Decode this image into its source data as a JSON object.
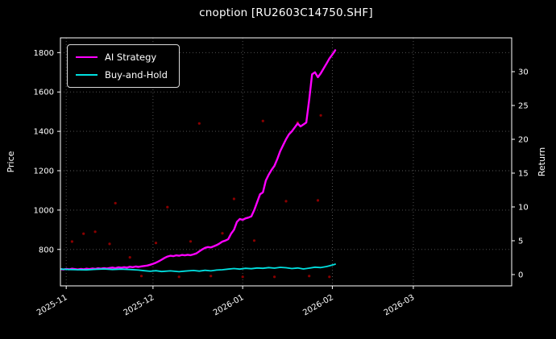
{
  "chart_data": {
    "type": "line",
    "title": "cnoption [RU2603C14750.SHF]",
    "ylabel_left": "Price",
    "ylabel_right": "Return",
    "x_unit": "days since 2025-10-28 (estimated from date ticks)",
    "x_range": [
      2,
      158
    ],
    "x_ticks": [
      {
        "x": 4,
        "label": "2025-11"
      },
      {
        "x": 34,
        "label": "2025-12"
      },
      {
        "x": 65,
        "label": "2026-01"
      },
      {
        "x": 96,
        "label": "2026-02"
      },
      {
        "x": 124,
        "label": "2026-03"
      }
    ],
    "y_left_range": [
      615,
      1875
    ],
    "y_left_ticks": [
      800,
      1000,
      1200,
      1400,
      1600,
      1800
    ],
    "y_right_range": [
      -1.67,
      35.0
    ],
    "y_right_ticks": [
      0,
      5,
      10,
      15,
      20,
      25,
      30
    ],
    "grid": true,
    "grid_style": "dotted",
    "legend_position": "upper-left",
    "background": "#000000",
    "text_color": "#ffffff",
    "grid_color": "#5a5a5a",
    "series": [
      {
        "name": "AI Strategy",
        "color": "#ff00ff",
        "line_width": 2.4,
        "axis": "left",
        "points": [
          [
            2,
            700
          ],
          [
            3,
            698
          ],
          [
            4,
            701
          ],
          [
            5,
            699
          ],
          [
            6,
            702
          ],
          [
            7,
            700
          ],
          [
            8,
            698
          ],
          [
            9,
            701
          ],
          [
            10,
            699
          ],
          [
            11,
            702
          ],
          [
            12,
            700
          ],
          [
            13,
            703
          ],
          [
            14,
            701
          ],
          [
            15,
            704
          ],
          [
            16,
            702
          ],
          [
            17,
            705
          ],
          [
            18,
            703
          ],
          [
            19,
            706
          ],
          [
            20,
            708
          ],
          [
            21,
            705
          ],
          [
            22,
            709
          ],
          [
            23,
            707
          ],
          [
            24,
            710
          ],
          [
            25,
            708
          ],
          [
            26,
            712
          ],
          [
            27,
            710
          ],
          [
            28,
            713
          ],
          [
            29,
            711
          ],
          [
            30,
            714
          ],
          [
            31,
            716
          ],
          [
            32,
            718
          ],
          [
            33,
            722
          ],
          [
            34,
            727
          ],
          [
            35,
            733
          ],
          [
            36,
            740
          ],
          [
            37,
            748
          ],
          [
            38,
            757
          ],
          [
            39,
            764
          ],
          [
            40,
            768
          ],
          [
            41,
            766
          ],
          [
            42,
            770
          ],
          [
            43,
            768
          ],
          [
            44,
            772
          ],
          [
            45,
            770
          ],
          [
            46,
            773
          ],
          [
            47,
            771
          ],
          [
            48,
            775
          ],
          [
            49,
            780
          ],
          [
            50,
            790
          ],
          [
            51,
            800
          ],
          [
            52,
            808
          ],
          [
            53,
            812
          ],
          [
            54,
            810
          ],
          [
            55,
            816
          ],
          [
            56,
            822
          ],
          [
            57,
            830
          ],
          [
            58,
            840
          ],
          [
            59,
            845
          ],
          [
            60,
            852
          ],
          [
            61,
            880
          ],
          [
            62,
            900
          ],
          [
            63,
            940
          ],
          [
            64,
            955
          ],
          [
            65,
            950
          ],
          [
            66,
            958
          ],
          [
            67,
            962
          ],
          [
            68,
            968
          ],
          [
            69,
            1000
          ],
          [
            70,
            1040
          ],
          [
            71,
            1080
          ],
          [
            72,
            1090
          ],
          [
            73,
            1150
          ],
          [
            74,
            1180
          ],
          [
            75,
            1205
          ],
          [
            76,
            1225
          ],
          [
            77,
            1260
          ],
          [
            78,
            1300
          ],
          [
            79,
            1330
          ],
          [
            80,
            1360
          ],
          [
            81,
            1385
          ],
          [
            82,
            1400
          ],
          [
            83,
            1420
          ],
          [
            84,
            1440
          ],
          [
            85,
            1425
          ],
          [
            86,
            1435
          ],
          [
            87,
            1445
          ],
          [
            88,
            1560
          ],
          [
            89,
            1690
          ],
          [
            90,
            1700
          ],
          [
            91,
            1675
          ],
          [
            92,
            1695
          ],
          [
            93,
            1720
          ],
          [
            94,
            1745
          ],
          [
            95,
            1770
          ],
          [
            96,
            1790
          ],
          [
            97,
            1812
          ]
        ]
      },
      {
        "name": "Buy-and-Hold",
        "color": "#00e0e0",
        "line_width": 1.8,
        "axis": "left",
        "points": [
          [
            2,
            700
          ],
          [
            5,
            698
          ],
          [
            8,
            697
          ],
          [
            11,
            696
          ],
          [
            14,
            699
          ],
          [
            17,
            701
          ],
          [
            20,
            698
          ],
          [
            23,
            700
          ],
          [
            26,
            698
          ],
          [
            29,
            695
          ],
          [
            31,
            692
          ],
          [
            33,
            689
          ],
          [
            35,
            692
          ],
          [
            37,
            688
          ],
          [
            40,
            691
          ],
          [
            43,
            687
          ],
          [
            45,
            690
          ],
          [
            48,
            693
          ],
          [
            50,
            690
          ],
          [
            52,
            694
          ],
          [
            54,
            691
          ],
          [
            56,
            695
          ],
          [
            58,
            697
          ],
          [
            60,
            700
          ],
          [
            62,
            703
          ],
          [
            64,
            700
          ],
          [
            66,
            704
          ],
          [
            68,
            702
          ],
          [
            70,
            706
          ],
          [
            72,
            704
          ],
          [
            74,
            708
          ],
          [
            76,
            705
          ],
          [
            78,
            709
          ],
          [
            80,
            707
          ],
          [
            82,
            703
          ],
          [
            84,
            706
          ],
          [
            86,
            701
          ],
          [
            88,
            705
          ],
          [
            90,
            710
          ],
          [
            92,
            708
          ],
          [
            94,
            713
          ],
          [
            95,
            717
          ],
          [
            96,
            721
          ],
          [
            97,
            725
          ]
        ]
      }
    ],
    "scatter": [
      {
        "name": "signal-dots",
        "color": "#8b0000",
        "radius": 1.6,
        "points": [
          [
            6,
            840
          ],
          [
            10,
            880
          ],
          [
            14,
            890
          ],
          [
            19,
            828
          ],
          [
            21,
            1035
          ],
          [
            26,
            760
          ],
          [
            30,
            665
          ],
          [
            35,
            833
          ],
          [
            39,
            1015
          ],
          [
            43,
            661
          ],
          [
            47,
            841
          ],
          [
            50,
            1440
          ],
          [
            54,
            665
          ],
          [
            58,
            882
          ],
          [
            62,
            1057
          ],
          [
            65,
            661
          ],
          [
            69,
            845
          ],
          [
            72,
            1453
          ],
          [
            76,
            661
          ],
          [
            80,
            1045
          ],
          [
            84,
            1445
          ],
          [
            88,
            665
          ],
          [
            91,
            1049
          ],
          [
            92,
            1481
          ],
          [
            95,
            661
          ]
        ]
      }
    ]
  }
}
